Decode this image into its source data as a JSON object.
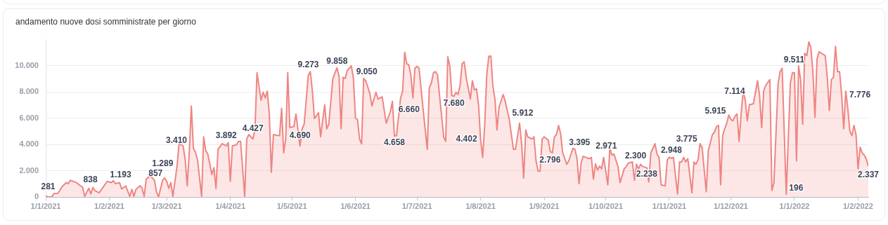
{
  "chart_data": {
    "type": "area",
    "title": "andamento nuove dosi somministrate per giorno",
    "x": [
      "2021-01-01",
      "2021-01-02",
      "2021-01-04",
      "2021-01-05",
      "2021-01-07",
      "2021-01-09",
      "2021-01-11",
      "2021-01-12",
      "2021-01-13",
      "2021-01-16",
      "2021-01-18",
      "2021-01-19",
      "2021-01-20",
      "2021-01-22",
      "2021-01-23",
      "2021-01-24",
      "2021-01-25",
      "2021-01-27",
      "2021-01-29",
      "2021-01-31",
      "2021-02-02",
      "2021-02-03",
      "2021-02-04",
      "2021-02-06",
      "2021-02-07",
      "2021-02-09",
      "2021-02-11",
      "2021-02-12",
      "2021-02-13",
      "2021-02-14",
      "2021-02-16",
      "2021-02-17",
      "2021-02-18",
      "2021-02-19",
      "2021-02-21",
      "2021-02-23",
      "2021-02-24",
      "2021-02-25",
      "2021-02-27",
      "2021-02-28",
      "2021-03-01",
      "2021-03-02",
      "2021-03-03",
      "2021-03-04",
      "2021-03-06",
      "2021-03-07",
      "2021-03-09",
      "2021-03-10",
      "2021-03-11",
      "2021-03-12",
      "2021-03-13",
      "2021-03-14",
      "2021-03-15",
      "2021-03-16",
      "2021-03-18",
      "2021-03-19",
      "2021-03-20",
      "2021-03-21",
      "2021-03-23",
      "2021-03-24",
      "2021-03-25",
      "2021-03-26",
      "2021-03-28",
      "2021-03-30",
      "2021-03-31",
      "2021-04-01",
      "2021-04-02",
      "2021-04-04",
      "2021-04-05",
      "2021-04-06",
      "2021-04-08",
      "2021-04-09",
      "2021-04-10",
      "2021-04-11",
      "2021-04-12",
      "2021-04-13",
      "2021-04-14",
      "2021-04-16",
      "2021-04-17",
      "2021-04-18",
      "2021-04-19",
      "2021-04-20",
      "2021-04-21",
      "2021-04-22",
      "2021-04-24",
      "2021-04-25",
      "2021-04-26",
      "2021-04-27",
      "2021-04-28",
      "2021-04-29",
      "2021-04-30",
      "2021-05-02",
      "2021-05-03",
      "2021-05-05",
      "2021-05-06",
      "2021-05-07",
      "2021-05-09",
      "2021-05-10",
      "2021-05-11",
      "2021-05-12",
      "2021-05-14",
      "2021-05-15",
      "2021-05-17",
      "2021-05-18",
      "2021-05-19",
      "2021-05-21",
      "2021-05-23",
      "2021-05-24",
      "2021-05-25",
      "2021-05-26",
      "2021-05-27",
      "2021-05-28",
      "2021-05-30",
      "2021-05-31",
      "2021-06-01",
      "2021-06-02",
      "2021-06-03",
      "2021-06-04",
      "2021-06-05",
      "2021-06-06",
      "2021-06-08",
      "2021-06-09",
      "2021-06-11",
      "2021-06-12",
      "2021-06-14",
      "2021-06-16",
      "2021-06-18",
      "2021-06-19",
      "2021-06-20",
      "2021-06-21",
      "2021-06-23",
      "2021-06-24",
      "2021-06-25",
      "2021-06-26",
      "2021-06-27",
      "2021-06-28",
      "2021-06-29",
      "2021-06-30",
      "2021-07-01",
      "2021-07-02",
      "2021-07-04",
      "2021-07-06",
      "2021-07-07",
      "2021-07-08",
      "2021-07-09",
      "2021-07-10",
      "2021-07-11",
      "2021-07-14",
      "2021-07-15",
      "2021-07-16",
      "2021-07-17",
      "2021-07-18",
      "2021-07-19",
      "2021-07-20",
      "2021-07-21",
      "2021-07-22",
      "2021-07-23",
      "2021-07-24",
      "2021-07-25",
      "2021-07-27",
      "2021-07-28",
      "2021-07-29",
      "2021-07-30",
      "2021-07-31",
      "2021-08-01",
      "2021-08-02",
      "2021-08-03",
      "2021-08-04",
      "2021-08-05",
      "2021-08-06",
      "2021-08-07",
      "2021-08-08",
      "2021-08-09",
      "2021-08-10",
      "2021-08-12",
      "2021-08-13",
      "2021-08-15",
      "2021-08-16",
      "2021-08-17",
      "2021-08-18",
      "2021-08-20",
      "2021-08-21",
      "2021-08-22",
      "2021-08-23",
      "2021-08-24",
      "2021-08-26",
      "2021-08-27",
      "2021-08-28",
      "2021-08-29",
      "2021-08-30",
      "2021-08-31",
      "2021-09-01",
      "2021-09-03",
      "2021-09-04",
      "2021-09-05",
      "2021-09-06",
      "2021-09-07",
      "2021-09-08",
      "2021-09-09",
      "2021-09-10",
      "2021-09-12",
      "2021-09-13",
      "2021-09-15",
      "2021-09-16",
      "2021-09-17",
      "2021-09-18",
      "2021-09-19",
      "2021-09-20",
      "2021-09-22",
      "2021-09-23",
      "2021-09-24",
      "2021-09-25",
      "2021-09-26",
      "2021-09-27",
      "2021-09-28",
      "2021-09-29",
      "2021-09-30",
      "2021-10-02",
      "2021-10-03",
      "2021-10-04",
      "2021-10-05",
      "2021-10-07",
      "2021-10-08",
      "2021-10-10",
      "2021-10-11",
      "2021-10-12",
      "2021-10-14",
      "2021-10-15",
      "2021-10-16",
      "2021-10-17",
      "2021-10-18",
      "2021-10-19",
      "2021-10-21",
      "2021-10-22",
      "2021-10-23",
      "2021-10-25",
      "2021-10-26",
      "2021-10-27",
      "2021-10-28",
      "2021-10-30",
      "2021-10-31",
      "2021-11-01",
      "2021-11-02",
      "2021-11-03",
      "2021-11-05",
      "2021-11-06",
      "2021-11-07",
      "2021-11-08",
      "2021-11-09",
      "2021-11-10",
      "2021-11-12",
      "2021-11-13",
      "2021-11-14",
      "2021-11-15",
      "2021-11-16",
      "2021-11-17",
      "2021-11-19",
      "2021-11-20",
      "2021-11-21",
      "2021-11-22",
      "2021-11-23",
      "2021-11-24",
      "2021-11-25",
      "2021-11-26",
      "2021-11-27",
      "2021-11-28",
      "2021-11-29",
      "2021-11-30",
      "2021-12-01",
      "2021-12-02",
      "2021-12-03",
      "2021-12-04",
      "2021-12-05",
      "2021-12-06",
      "2021-12-07",
      "2021-12-08",
      "2021-12-09",
      "2021-12-10",
      "2021-12-12",
      "2021-12-14",
      "2021-12-15",
      "2021-12-16",
      "2021-12-17",
      "2021-12-18",
      "2021-12-20",
      "2021-12-21",
      "2021-12-22",
      "2021-12-24",
      "2021-12-25",
      "2021-12-26",
      "2021-12-28",
      "2021-12-30",
      "2021-12-31",
      "2022-01-01",
      "2022-01-02",
      "2022-01-03",
      "2022-01-04",
      "2022-01-05",
      "2022-01-06",
      "2022-01-07",
      "2022-01-08",
      "2022-01-09",
      "2022-01-10",
      "2022-01-11",
      "2022-01-12",
      "2022-01-13",
      "2022-01-15",
      "2022-01-16",
      "2022-01-17",
      "2022-01-18",
      "2022-01-19",
      "2022-01-20",
      "2022-01-21",
      "2022-01-22",
      "2022-01-23",
      "2022-01-24",
      "2022-01-25",
      "2022-01-26",
      "2022-01-27",
      "2022-01-28",
      "2022-01-29",
      "2022-01-30",
      "2022-01-31",
      "2022-02-01",
      "2022-02-02",
      "2022-02-03",
      "2022-02-04",
      "2022-02-05",
      "2022-02-06"
    ],
    "series": [
      {
        "color": "#ee8583",
        "values": [
          90,
          0,
          0,
          260,
          281,
          785,
          1100,
          1010,
          1270,
          1100,
          838,
          750,
          50,
          660,
          230,
          715,
          490,
          310,
          750,
          1193,
          1100,
          1240,
          1010,
          1100,
          610,
          840,
          50,
          580,
          50,
          580,
          857,
          660,
          50,
          1360,
          1620,
          1270,
          400,
          0,
          1289,
          1450,
          1190,
          660,
          1100,
          50,
          2320,
          4070,
          3890,
          2840,
          840,
          3455,
          6945,
          3720,
          3410,
          2840,
          50,
          4590,
          3540,
          3280,
          1710,
          2230,
          660,
          3630,
          4070,
          3892,
          4150,
          1190,
          3890,
          3980,
          4240,
          4240,
          50,
          4415,
          4760,
          4600,
          4427,
          5110,
          9475,
          7380,
          7990,
          7555,
          8080,
          6335,
          1885,
          4760,
          4690,
          4675,
          6770,
          3370,
          4415,
          9475,
          5290,
          5375,
          6335,
          3890,
          5200,
          5550,
          9273,
          9560,
          8080,
          5985,
          6420,
          4590,
          7030,
          5200,
          5550,
          9040,
          9858,
          9215,
          5200,
          9125,
          9040,
          9650,
          10000,
          9050,
          6020,
          5900,
          4415,
          4065,
          9040,
          8865,
          7905,
          6945,
          7990,
          7470,
          7645,
          5635,
          6510,
          7295,
          4658,
          4675,
          7555,
          8080,
          11045,
          10170,
          10085,
          9300,
          7555,
          9825,
          9965,
          9825,
          6660,
          3630,
          8340,
          8690,
          9475,
          9560,
          9300,
          4590,
          4240,
          10700,
          10000,
          7730,
          7680,
          7990,
          7820,
          8515,
          10170,
          10310,
          9125,
          7470,
          8865,
          8165,
          8255,
          7030,
          4402,
          3020,
          5460,
          9300,
          10730,
          10750,
          8430,
          7470,
          5115,
          6860,
          7820,
          7295,
          5912,
          4760,
          3630,
          3630,
          5635,
          4065,
          1450,
          5115,
          4590,
          4415,
          4590,
          2796,
          1970,
          1970,
          4415,
          4590,
          4330,
          3455,
          3370,
          4590,
          4760,
          5460,
          4850,
          3395,
          2495,
          2755,
          3715,
          3630,
          2930,
          1010,
          2580,
          3105,
          2971,
          2930,
          3020,
          1360,
          2530,
          2060,
          2355,
          2145,
          3020,
          925,
          3715,
          3195,
          3280,
          2300,
          1100,
          2145,
          2320,
          2580,
          2670,
          1270,
          2495,
          2145,
          2495,
          2320,
          2238,
          1150,
          3370,
          4065,
          3280,
          3020,
          925,
          840,
          2845,
          3020,
          2948,
          3020,
          225,
          2670,
          2670,
          3020,
          2670,
          2930,
          315,
          2670,
          2495,
          2845,
          4065,
          3775,
          400,
          3540,
          4150,
          4760,
          4940,
          5375,
          5460,
          925,
          4675,
          5200,
          5635,
          6250,
          5915,
          5810,
          6160,
          6335,
          4240,
          6335,
          8080,
          7380,
          5810,
          7030,
          7114,
          8865,
          7730,
          5290,
          8080,
          8515,
          8950,
          490,
          1100,
          8600,
          9560,
          9825,
          196,
          8690,
          9475,
          9475,
          2755,
          10000,
          8950,
          5550,
          10960,
          10785,
          11830,
          11395,
          9511,
          6070,
          10520,
          11080,
          10870,
          10785,
          9125,
          6595,
          8950,
          9125,
          11480,
          9560,
          9560,
          7776,
          5200,
          8080,
          6770,
          5025,
          4675,
          5460,
          4760,
          2145,
          3800,
          3370,
          3195,
          2900,
          2337
        ],
        "value_labels": [
          null,
          null,
          null,
          null,
          "281",
          null,
          null,
          null,
          null,
          null,
          "838",
          null,
          null,
          null,
          null,
          null,
          null,
          null,
          null,
          "1.193",
          null,
          null,
          null,
          null,
          null,
          null,
          null,
          null,
          null,
          null,
          "857",
          null,
          null,
          null,
          null,
          null,
          null,
          null,
          "1.289",
          null,
          null,
          null,
          null,
          null,
          null,
          null,
          null,
          null,
          null,
          null,
          null,
          null,
          "3.410",
          null,
          null,
          null,
          null,
          null,
          null,
          null,
          null,
          null,
          null,
          "3.892",
          null,
          null,
          null,
          null,
          null,
          null,
          null,
          null,
          null,
          null,
          "4.427",
          null,
          null,
          null,
          null,
          null,
          null,
          null,
          null,
          null,
          "4.690",
          null,
          null,
          null,
          null,
          null,
          null,
          null,
          null,
          null,
          null,
          null,
          "9.273",
          null,
          null,
          null,
          null,
          null,
          null,
          null,
          null,
          null,
          "9.858",
          null,
          null,
          null,
          null,
          null,
          null,
          "9.050",
          null,
          null,
          null,
          null,
          null,
          null,
          null,
          null,
          null,
          null,
          null,
          null,
          null,
          null,
          "4.658",
          null,
          null,
          null,
          null,
          null,
          null,
          null,
          null,
          null,
          null,
          null,
          "6.660",
          null,
          null,
          null,
          null,
          null,
          null,
          null,
          null,
          null,
          null,
          null,
          "7.680",
          null,
          null,
          null,
          null,
          null,
          null,
          null,
          null,
          null,
          null,
          null,
          "4.402",
          null,
          null,
          null,
          null,
          null,
          null,
          null,
          null,
          null,
          null,
          null,
          "5.912",
          null,
          null,
          null,
          null,
          null,
          null,
          null,
          null,
          null,
          null,
          "2.796",
          null,
          null,
          null,
          null,
          null,
          null,
          null,
          null,
          null,
          null,
          null,
          "3.395",
          null,
          null,
          null,
          null,
          null,
          null,
          null,
          null,
          "2.971",
          null,
          null,
          null,
          null,
          null,
          null,
          null,
          null,
          null,
          null,
          null,
          null,
          "2.300",
          null,
          null,
          null,
          null,
          null,
          null,
          null,
          null,
          null,
          null,
          "2.238",
          null,
          null,
          null,
          null,
          null,
          null,
          null,
          null,
          null,
          "2.948",
          null,
          null,
          null,
          null,
          null,
          null,
          null,
          null,
          null,
          null,
          null,
          null,
          "3.775",
          null,
          null,
          null,
          null,
          null,
          null,
          null,
          null,
          null,
          null,
          null,
          null,
          "5.915",
          null,
          null,
          null,
          null,
          null,
          null,
          null,
          null,
          null,
          "7.114",
          null,
          null,
          null,
          null,
          null,
          null,
          null,
          null,
          null,
          null,
          null,
          "196",
          null,
          null,
          null,
          null,
          null,
          null,
          null,
          null,
          null,
          null,
          null,
          "9.511",
          null,
          null,
          null,
          null,
          null,
          null,
          null,
          null,
          null,
          null,
          null,
          null,
          "7.776",
          null,
          null,
          null,
          null,
          null,
          null,
          null,
          null,
          null,
          null,
          null,
          null,
          "2.337"
        ]
      }
    ],
    "xlim": [
      "2021-01-01",
      "2022-02-06"
    ],
    "xticks": [
      {
        "value": "2021-01-01",
        "label": "1/1/2021"
      },
      {
        "value": "2021-02-01",
        "label": "1/2/2021"
      },
      {
        "value": "2021-03-01",
        "label": "1/3/2021"
      },
      {
        "value": "2021-04-01",
        "label": "1/4/2021"
      },
      {
        "value": "2021-05-01",
        "label": "1/5/2021"
      },
      {
        "value": "2021-06-01",
        "label": "1/6/2021"
      },
      {
        "value": "2021-07-01",
        "label": "1/7/2021"
      },
      {
        "value": "2021-08-01",
        "label": "1/8/2021"
      },
      {
        "value": "2021-09-01",
        "label": "1/9/2021"
      },
      {
        "value": "2021-10-01",
        "label": "1/10/2021"
      },
      {
        "value": "2021-11-01",
        "label": "1/11/2021"
      },
      {
        "value": "2021-12-01",
        "label": "1/12/2021"
      },
      {
        "value": "2022-01-01",
        "label": "1/1/2022"
      },
      {
        "value": "2022-02-01",
        "label": "1/2/2022"
      }
    ],
    "ylim": [
      0,
      12000
    ],
    "yticks": [
      0,
      {
        "value": 2000,
        "label": "2.000"
      },
      {
        "value": 4000,
        "label": "4.000"
      },
      {
        "value": 6000,
        "label": "6.000"
      },
      {
        "value": 8000,
        "label": "8.000"
      },
      {
        "value": 10000,
        "label": "10.000"
      }
    ],
    "grid": "y",
    "legend": false,
    "marker": "none",
    "line_style": "solid"
  }
}
